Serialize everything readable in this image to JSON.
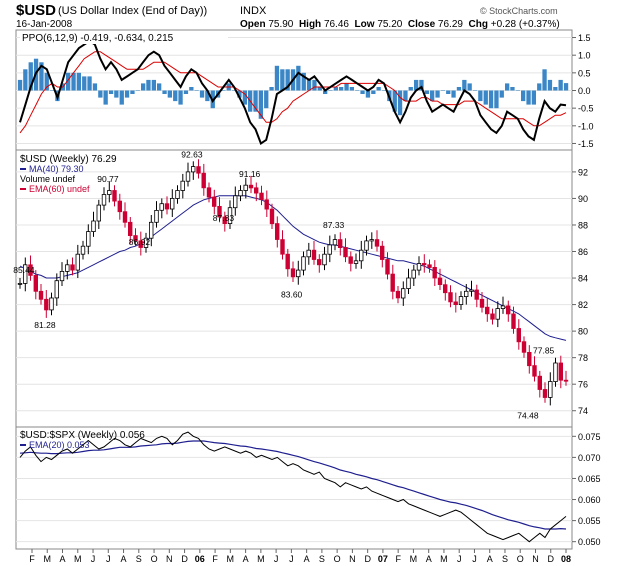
{
  "header": {
    "symbol": "$USD",
    "description": "(US Dollar Index (End of Day))",
    "exchange": "INDX",
    "date": "16-Jan-2008",
    "open_label": "Open",
    "open": "75.90",
    "high_label": "High",
    "high": "76.46",
    "low_label": "Low",
    "low": "75.20",
    "close_label": "Close",
    "close": "76.29",
    "chg_label": "Chg",
    "chg": "+0.28 (+0.37%)",
    "copyright": "© StockCharts.com"
  },
  "chart_data": [
    {
      "type": "line",
      "panel": "ppo",
      "legend": "PPO(6,12,9) -0.419, -0.634, 0.215",
      "ylim": [
        -1.6,
        1.6
      ],
      "yticks": [
        "1.5",
        "1.0",
        "0.5",
        "0.0",
        "-0.5",
        "-1.0",
        "-1.5"
      ],
      "grid": true,
      "colors": {
        "ppo": "#000000",
        "signal": "#dd0000",
        "hist": "#3a86c6"
      },
      "series": [
        {
          "name": "PPO(6,12,9)",
          "values": [
            -0.9,
            -0.4,
            0.1,
            0.5,
            0.7,
            0.6,
            0.2,
            -0.2,
            0.3,
            0.8,
            1.0,
            1.2,
            1.3,
            1.4,
            1.3,
            0.9,
            0.6,
            0.8,
            0.6,
            0.3,
            0.4,
            0.5,
            0.6,
            0.8,
            1.0,
            1.1,
            1.0,
            0.7,
            0.5,
            0.3,
            0.1,
            0.4,
            0.6,
            0.5,
            0.2,
            0.0,
            -0.3,
            -0.1,
            0.1,
            0.3,
            0.1,
            -0.2,
            -0.5,
            -0.9,
            -1.1,
            -1.5,
            -1.4,
            -0.8,
            -0.1,
            0.0,
            0.1,
            0.3,
            0.5,
            0.4,
            0.3,
            0.4,
            0.2,
            0.0,
            0.1,
            0.2,
            0.3,
            0.4,
            0.3,
            0.2,
            0.1,
            0.0,
            0.1,
            0.3,
            0.2,
            -0.2,
            -0.6,
            -0.9,
            -0.6,
            -0.2,
            0.0,
            0.1,
            -0.3,
            -0.6,
            -0.5,
            -0.4,
            -0.5,
            -0.6,
            -0.3,
            0.0,
            -0.1,
            -0.3,
            -0.7,
            -0.9,
            -1.1,
            -1.2,
            -1.0,
            -0.6,
            -0.7,
            -0.8,
            -1.1,
            -1.3,
            -1.4,
            -0.8,
            -0.3,
            -0.5,
            -0.6,
            -0.4,
            -0.42
          ]
        },
        {
          "name": "Signal",
          "values": [
            -1.2,
            -1.0,
            -0.7,
            -0.4,
            -0.1,
            0.1,
            0.2,
            0.1,
            0.1,
            0.3,
            0.5,
            0.7,
            0.9,
            1.0,
            1.1,
            1.1,
            1.0,
            0.9,
            0.8,
            0.7,
            0.6,
            0.6,
            0.6,
            0.6,
            0.7,
            0.8,
            0.8,
            0.8,
            0.7,
            0.6,
            0.5,
            0.5,
            0.5,
            0.5,
            0.4,
            0.3,
            0.2,
            0.1,
            0.1,
            0.1,
            0.1,
            0.0,
            -0.1,
            -0.3,
            -0.5,
            -0.7,
            -0.9,
            -0.9,
            -0.8,
            -0.6,
            -0.5,
            -0.3,
            -0.2,
            -0.1,
            0.0,
            0.1,
            0.1,
            0.1,
            0.1,
            0.1,
            0.2,
            0.2,
            0.2,
            0.2,
            0.2,
            0.2,
            0.2,
            0.2,
            0.2,
            0.1,
            0.0,
            -0.2,
            -0.3,
            -0.3,
            -0.3,
            -0.2,
            -0.2,
            -0.3,
            -0.3,
            -0.4,
            -0.4,
            -0.4,
            -0.4,
            -0.3,
            -0.3,
            -0.3,
            -0.4,
            -0.5,
            -0.6,
            -0.7,
            -0.8,
            -0.8,
            -0.8,
            -0.8,
            -0.8,
            -0.9,
            -1.0,
            -1.0,
            -0.9,
            -0.8,
            -0.7,
            -0.7,
            -0.63
          ]
        }
      ]
    },
    {
      "type": "line",
      "panel": "price",
      "legend_title": "$USD (Weekly) 76.29",
      "legend_ma": "MA(40) 79.30",
      "legend_volume": "Volume undef",
      "legend_ema": "EMA(60) undef",
      "ylim": [
        73,
        93.5
      ],
      "yticks": [
        "92",
        "90",
        "88",
        "86",
        "84",
        "82",
        "80",
        "78",
        "76",
        "74"
      ],
      "grid": true,
      "colors": {
        "up": "#000000",
        "down": "#cc0033",
        "ma": "#1f1f8f"
      },
      "annotations": [
        {
          "label": "85.44",
          "i": 1,
          "value": 85.44
        },
        {
          "label": "81.28",
          "i": 5,
          "value": 81.28
        },
        {
          "label": "90.77",
          "i": 17,
          "value": 90.77
        },
        {
          "label": "86.02",
          "i": 23,
          "value": 86.02
        },
        {
          "label": "92.63",
          "i": 33,
          "value": 92.63
        },
        {
          "label": "87.83",
          "i": 39,
          "value": 87.83
        },
        {
          "label": "91.16",
          "i": 44,
          "value": 91.16
        },
        {
          "label": "83.60",
          "i": 52,
          "value": 83.6
        },
        {
          "label": "87.33",
          "i": 60,
          "value": 87.33
        },
        {
          "label": "77.85",
          "i": 100,
          "value": 77.85
        },
        {
          "label": "74.48",
          "i": 97,
          "value": 74.48
        }
      ],
      "series": [
        {
          "name": "$USD (Weekly)",
          "values": [
            83.6,
            85.0,
            84.2,
            83.0,
            82.4,
            81.6,
            82.5,
            83.8,
            84.5,
            85.0,
            84.6,
            85.8,
            86.4,
            87.5,
            88.3,
            89.5,
            90.3,
            90.6,
            89.8,
            89.0,
            88.2,
            87.2,
            86.8,
            86.3,
            87.0,
            88.2,
            89.1,
            89.6,
            89.2,
            90.0,
            90.6,
            91.3,
            92.0,
            92.4,
            91.9,
            90.8,
            90.1,
            89.4,
            88.6,
            88.1,
            89.3,
            90.2,
            90.6,
            91.0,
            90.8,
            90.4,
            89.9,
            89.2,
            88.1,
            86.9,
            85.8,
            84.7,
            84.1,
            84.6,
            85.6,
            86.1,
            85.4,
            85.0,
            85.8,
            86.5,
            86.9,
            86.3,
            85.6,
            85.1,
            85.3,
            86.1,
            86.8,
            86.9,
            86.4,
            85.4,
            84.3,
            83.0,
            82.5,
            83.2,
            84.0,
            84.6,
            85.1,
            85.0,
            84.8,
            84.0,
            83.5,
            82.9,
            82.2,
            82.0,
            82.6,
            83.0,
            83.1,
            82.4,
            81.8,
            81.3,
            80.9,
            81.7,
            81.9,
            81.3,
            80.2,
            79.2,
            78.4,
            77.4,
            76.6,
            75.6,
            75.0,
            76.2,
            77.6,
            76.3,
            76.29
          ]
        },
        {
          "name": "MA(40)",
          "values": [
            84.9,
            84.7,
            84.5,
            84.3,
            84.2,
            84.0,
            84.0,
            84.0,
            84.1,
            84.2,
            84.3,
            84.4,
            84.6,
            84.8,
            85.0,
            85.2,
            85.4,
            85.6,
            85.8,
            86.0,
            86.1,
            86.3,
            86.4,
            86.6,
            86.8,
            87.1,
            87.4,
            87.7,
            88.0,
            88.3,
            88.6,
            88.9,
            89.2,
            89.5,
            89.7,
            89.9,
            90.0,
            90.1,
            90.2,
            90.2,
            90.2,
            90.2,
            90.2,
            90.2,
            90.1,
            90.0,
            89.9,
            89.7,
            89.4,
            89.1,
            88.7,
            88.3,
            87.9,
            87.6,
            87.3,
            87.1,
            86.9,
            86.7,
            86.6,
            86.5,
            86.5,
            86.4,
            86.3,
            86.2,
            86.1,
            86.0,
            85.9,
            85.8,
            85.7,
            85.6,
            85.5,
            85.4,
            85.3,
            85.3,
            85.2,
            85.1,
            85.0,
            84.9,
            84.7,
            84.5,
            84.3,
            84.1,
            83.9,
            83.7,
            83.5,
            83.3,
            83.1,
            82.9,
            82.7,
            82.5,
            82.3,
            82.1,
            81.9,
            81.7,
            81.5,
            81.3,
            81.0,
            80.7,
            80.4,
            80.1,
            79.8,
            79.6,
            79.5,
            79.4,
            79.3
          ]
        }
      ]
    },
    {
      "type": "line",
      "panel": "ratio",
      "legend_title": "$USD:$SPX (Weekly) 0.056",
      "legend_ema": "EMA(20) 0.053",
      "ylim": [
        0.0485,
        0.0765
      ],
      "yticks": [
        "0.075",
        "0.070",
        "0.065",
        "0.060",
        "0.055",
        "0.050"
      ],
      "grid": true,
      "colors": {
        "ratio": "#000000",
        "ema": "#1f1f8f"
      },
      "series": [
        {
          "name": "$USD:$SPX (Weekly)",
          "values": [
            0.07,
            0.0715,
            0.0725,
            0.0705,
            0.069,
            0.07,
            0.0695,
            0.0705,
            0.0715,
            0.072,
            0.071,
            0.072,
            0.073,
            0.074,
            0.073,
            0.072,
            0.0725,
            0.0735,
            0.0745,
            0.074,
            0.073,
            0.0725,
            0.0735,
            0.0745,
            0.074,
            0.0735,
            0.0745,
            0.075,
            0.0745,
            0.073,
            0.074,
            0.0755,
            0.076,
            0.075,
            0.0745,
            0.073,
            0.072,
            0.0715,
            0.072,
            0.0725,
            0.072,
            0.0715,
            0.071,
            0.0715,
            0.071,
            0.07,
            0.0705,
            0.07,
            0.0695,
            0.07,
            0.069,
            0.068,
            0.0685,
            0.068,
            0.067,
            0.0665,
            0.066,
            0.0665,
            0.065,
            0.0645,
            0.064,
            0.063,
            0.064,
            0.0635,
            0.063,
            0.0625,
            0.063,
            0.062,
            0.0615,
            0.061,
            0.0605,
            0.06,
            0.0595,
            0.06,
            0.059,
            0.0585,
            0.058,
            0.0575,
            0.057,
            0.0565,
            0.056,
            0.0565,
            0.057,
            0.0575,
            0.057,
            0.056,
            0.055,
            0.054,
            0.053,
            0.052,
            0.0515,
            0.051,
            0.0505,
            0.051,
            0.0515,
            0.052,
            0.051,
            0.05,
            0.051,
            0.052,
            0.051,
            0.053,
            0.054,
            0.055,
            0.056
          ]
        },
        {
          "name": "EMA(20)",
          "values": [
            0.071,
            0.0711,
            0.0712,
            0.0711,
            0.071,
            0.071,
            0.0709,
            0.0709,
            0.071,
            0.0711,
            0.0711,
            0.0712,
            0.0714,
            0.0716,
            0.0717,
            0.0717,
            0.0718,
            0.072,
            0.0722,
            0.0724,
            0.0724,
            0.0724,
            0.0725,
            0.0727,
            0.0728,
            0.0729,
            0.073,
            0.0732,
            0.0733,
            0.0733,
            0.0734,
            0.0736,
            0.0738,
            0.0739,
            0.0739,
            0.0739,
            0.0737,
            0.0735,
            0.0734,
            0.0733,
            0.0731,
            0.0729,
            0.0727,
            0.0726,
            0.0724,
            0.0721,
            0.072,
            0.0718,
            0.0716,
            0.0714,
            0.0711,
            0.0708,
            0.0705,
            0.0702,
            0.0698,
            0.0694,
            0.069,
            0.0687,
            0.0683,
            0.0679,
            0.0675,
            0.067,
            0.0667,
            0.0664,
            0.066,
            0.0657,
            0.0654,
            0.065,
            0.0647,
            0.0643,
            0.0639,
            0.0635,
            0.0631,
            0.0628,
            0.0624,
            0.062,
            0.0616,
            0.0612,
            0.0608,
            0.0604,
            0.06,
            0.0597,
            0.0594,
            0.0592,
            0.0589,
            0.0586,
            0.0582,
            0.0578,
            0.0574,
            0.0569,
            0.0564,
            0.056,
            0.0556,
            0.0552,
            0.0549,
            0.0546,
            0.0542,
            0.0538,
            0.0535,
            0.0533,
            0.053,
            0.053,
            0.053,
            0.0531,
            0.053
          ]
        }
      ]
    }
  ],
  "xaxis": {
    "labels": [
      "F",
      "M",
      "A",
      "M",
      "J",
      "J",
      "A",
      "S",
      "O",
      "N",
      "D",
      "06",
      "F",
      "M",
      "A",
      "M",
      "J",
      "J",
      "A",
      "S",
      "O",
      "N",
      "D",
      "07",
      "F",
      "M",
      "A",
      "M",
      "J",
      "J",
      "A",
      "S",
      "O",
      "N",
      "D",
      "08"
    ],
    "bold": [
      "06",
      "07",
      "08"
    ]
  }
}
